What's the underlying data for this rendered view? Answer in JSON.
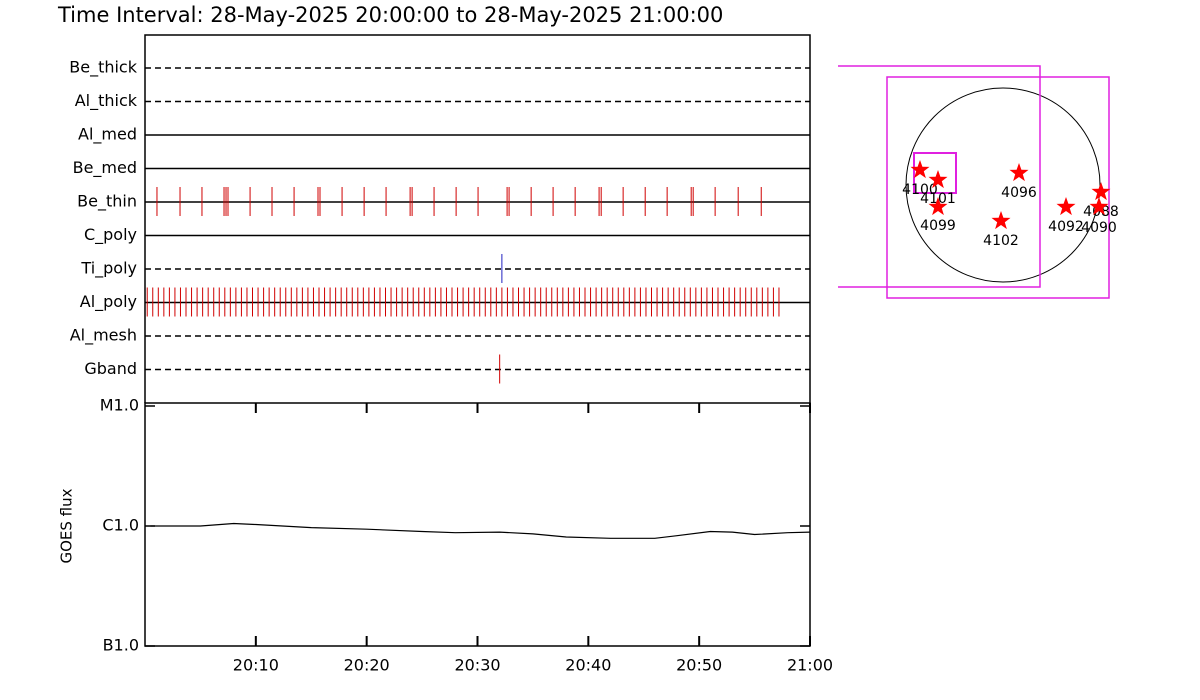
{
  "title": "Time Interval: 28-May-2025 20:00:00 to 28-May-2025 21:00:00",
  "chart_data": [
    {
      "type": "filter_timeline",
      "xlim": [
        0,
        60
      ],
      "rows": [
        {
          "name": "Be_thick",
          "style": "dashed"
        },
        {
          "name": "Al_thick",
          "style": "dashed"
        },
        {
          "name": "Al_med",
          "style": "solid"
        },
        {
          "name": "Be_med",
          "style": "solid"
        },
        {
          "name": "Be_thin",
          "style": "solid",
          "color": "#d00000",
          "times": [
            1.08,
            3.16,
            5.14,
            7.13,
            7.31,
            7.49,
            9.48,
            11.46,
            13.45,
            15.61,
            15.79,
            17.78,
            19.77,
            21.75,
            23.92,
            24.1,
            26.08,
            28.07,
            30.05,
            32.67,
            32.85,
            34.84,
            36.82,
            38.81,
            40.97,
            41.16,
            43.14,
            45.13,
            47.11,
            49.28,
            49.46,
            51.44,
            53.52,
            55.6
          ]
        },
        {
          "name": "C_poly",
          "style": "solid"
        },
        {
          "name": "Ti_poly",
          "style": "dashed",
          "color": "#2020c0",
          "times": [
            32.2
          ]
        },
        {
          "name": "Al_poly",
          "style": "solid",
          "color": "#d00000",
          "times": [
            0.2,
            0.7,
            1.2,
            1.7,
            2.2,
            2.7,
            3.2,
            3.7,
            4.2,
            4.7,
            5.2,
            5.7,
            6.2,
            6.7,
            7.2,
            7.7,
            8.2,
            8.7,
            9.2,
            9.7,
            10.2,
            10.7,
            11.2,
            11.7,
            12.2,
            12.7,
            13.2,
            13.7,
            14.2,
            14.7,
            15.2,
            15.7,
            16.2,
            16.7,
            17.2,
            17.7,
            18.2,
            18.7,
            19.2,
            19.7,
            20.2,
            20.7,
            21.2,
            21.7,
            22.2,
            22.7,
            23.2,
            23.7,
            24.2,
            24.7,
            25.2,
            25.7,
            26.2,
            26.7,
            27.2,
            27.7,
            28.2,
            28.7,
            29.2,
            29.7,
            30.2,
            30.7,
            31.2,
            31.7,
            32.2,
            32.7,
            33.2,
            33.7,
            34.2,
            34.7,
            35.2,
            35.7,
            36.2,
            36.7,
            37.2,
            37.7,
            38.2,
            38.7,
            39.2,
            39.7,
            40.2,
            40.7,
            41.2,
            41.7,
            42.2,
            42.7,
            43.2,
            43.7,
            44.2,
            44.7,
            45.2,
            45.7,
            46.2,
            46.7,
            47.2,
            47.7,
            48.2,
            48.7,
            49.2,
            49.7,
            50.2,
            50.7,
            51.2,
            51.7,
            52.2,
            52.7,
            53.2,
            53.7,
            54.2,
            54.7,
            55.2,
            55.7,
            56.2,
            56.7,
            57.2
          ]
        },
        {
          "name": "Al_mesh",
          "style": "dashed"
        },
        {
          "name": "Gband",
          "style": "dashed",
          "color": "#d00000",
          "times": [
            32.0
          ]
        }
      ]
    },
    {
      "type": "line",
      "ylabel": "GOES flux",
      "log_scale": true,
      "xlim": [
        0,
        60
      ],
      "xticks": [
        {
          "value": 10,
          "label": "20:10"
        },
        {
          "value": 20,
          "label": "20:20"
        },
        {
          "value": 30,
          "label": "20:30"
        },
        {
          "value": 40,
          "label": "20:40"
        },
        {
          "value": 50,
          "label": "20:50"
        },
        {
          "value": 60,
          "label": "21:00"
        }
      ],
      "ylim": [
        1e-07,
        1e-05
      ],
      "yticks": [
        {
          "value": 1e-05,
          "label": "M1.0"
        },
        {
          "value": 1e-06,
          "label": "C1.0"
        },
        {
          "value": 1e-07,
          "label": "B1.0"
        }
      ],
      "x": [
        0.5,
        2,
        5,
        8,
        10,
        15,
        20,
        25,
        28,
        32,
        35,
        38,
        42,
        46,
        48,
        51,
        53,
        55,
        58,
        60
      ],
      "series": [
        {
          "color": "#000000",
          "values": [
            1e-06,
            1e-06,
            1e-06,
            1.05e-06,
            1.03e-06,
            9.7e-07,
            9.4e-07,
            9e-07,
            8.8e-07,
            8.9e-07,
            8.6e-07,
            8.1e-07,
            7.9e-07,
            7.9e-07,
            8.3e-07,
            9e-07,
            8.9e-07,
            8.5e-07,
            8.8e-07,
            8.9e-07
          ]
        }
      ]
    }
  ],
  "map": {
    "regions": [
      {
        "label": "4100"
      },
      {
        "label": "4101"
      },
      {
        "label": "4099"
      },
      {
        "label": "4096"
      },
      {
        "label": "4102"
      },
      {
        "label": "4092"
      },
      {
        "label": "4088"
      },
      {
        "label": "4090"
      }
    ]
  }
}
